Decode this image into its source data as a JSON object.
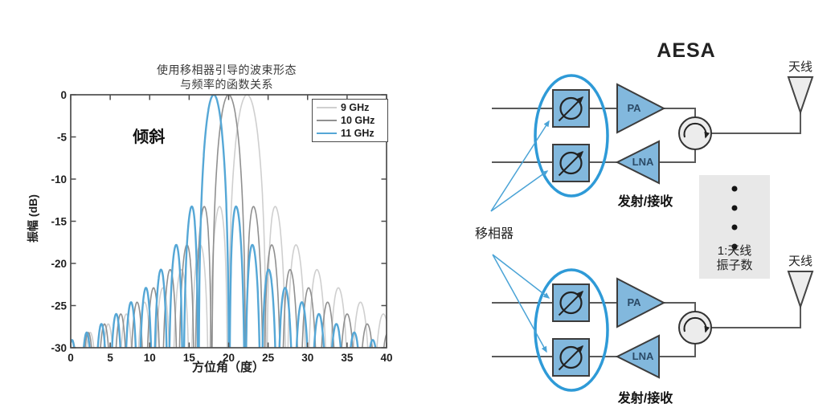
{
  "chart_data": {
    "type": "line",
    "title_lines": [
      "使用移相器引导的波束形态",
      "与频率的函数关系"
    ],
    "xlabel": "方位角（度）",
    "ylabel": "振幅 (dB)",
    "xlim": [
      0,
      40
    ],
    "ylim": [
      -30,
      0
    ],
    "xticks": [
      0,
      5,
      10,
      15,
      20,
      25,
      30,
      35,
      40
    ],
    "yticks": [
      0,
      -5,
      -10,
      -15,
      -20,
      -25,
      -30
    ],
    "grid": false,
    "frame": true,
    "legend_position": "top-right",
    "annotation": {
      "text": "倾斜",
      "x_deg": 9.9,
      "y_db": -4.7
    },
    "series": [
      {
        "name": "9 GHz",
        "color": "#cfcfcf",
        "line_width": 1.6,
        "main_lobe_deg": 22.3,
        "peak_db": 0,
        "first_sidelobe_db": -13.3
      },
      {
        "name": "10 GHz",
        "color": "#909090",
        "line_width": 1.6,
        "main_lobe_deg": 20.0,
        "peak_db": 0,
        "first_sidelobe_db": -13.3
      },
      {
        "name": "11 GHz",
        "color": "#55a7d6",
        "line_width": 2.4,
        "main_lobe_deg": 18.1,
        "peak_db": 0,
        "first_sidelobe_db": -13.3
      }
    ],
    "model": {
      "kind": "uniform-linear-array-factor",
      "elements": 56,
      "element_spacing_wavelengths_at_10GHz": 0.5,
      "steer_deg_at_10GHz": 20,
      "db_formula": "20*log10(|sin(N*psi/2)/(N*sin(psi/2))|), psi = pi*(f/10GHz)*sin(az) - pi*sin(20deg)"
    }
  },
  "diagram": {
    "title": "AESA",
    "antenna_label": "天线",
    "phase_shifter_label": "移相器",
    "pa_label": "PA",
    "lna_label": "LNA",
    "tr_label": "发射/接收",
    "elements_note": [
      "1:天线",
      "振子数"
    ],
    "icons": [
      "phase-shifter-icon",
      "pa-amplifier-icon",
      "lna-amplifier-icon",
      "circulator-icon",
      "antenna-icon"
    ],
    "colors": {
      "component_fill": "#82b8dd",
      "component_border": "#3c3c3c",
      "highlight_blue": "#2e9ad7",
      "pointer_blue": "#4aa3d6",
      "wire": "#5a5a5a",
      "note_box": "#e8e8e8",
      "antenna_fill": "#ededed",
      "circulator_fill": "#ececec"
    }
  }
}
